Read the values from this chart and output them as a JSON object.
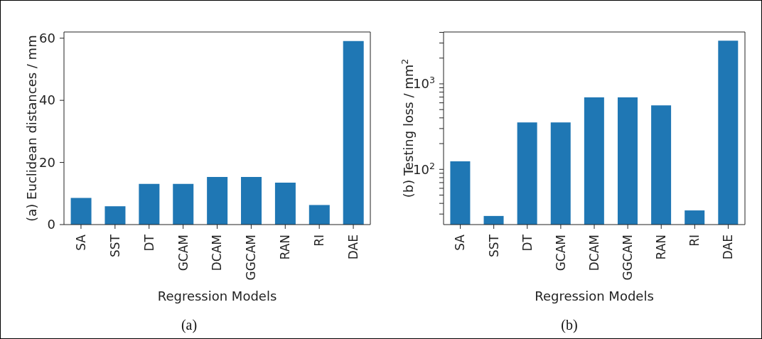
{
  "chart_data": [
    {
      "type": "bar",
      "categories": [
        "SA",
        "SST",
        "DT",
        "GCAM",
        "DCAM",
        "GGCAM",
        "RAN",
        "RI",
        "DAE"
      ],
      "values": [
        8.6,
        5.9,
        13.1,
        13.1,
        15.3,
        15.3,
        13.5,
        6.3,
        59.1
      ],
      "color": "#1f77b4",
      "ylim": [
        0,
        62
      ],
      "yticks": [
        0,
        20,
        40,
        60
      ],
      "xlabel": "Regression Models",
      "ylabel": "(a) Euclidean distances / mm",
      "annotations": [
        "(a)"
      ]
    },
    {
      "type": "bar",
      "categories": [
        "SA",
        "SST",
        "DT",
        "GCAM",
        "DCAM",
        "GGCAM",
        "RAN",
        "RI",
        "DAE"
      ],
      "values": [
        124,
        28.5,
        354,
        354,
        696,
        696,
        561,
        33.1,
        3190
      ],
      "color": "#1f77b4",
      "log": true,
      "ylim": [
        22.6,
        4040
      ],
      "yticks": [
        {
          "value": 30,
          "label": null
        },
        {
          "value": 40,
          "label": null
        },
        {
          "value": 50,
          "label": null
        },
        {
          "value": 60,
          "label": null
        },
        {
          "value": 70,
          "label": null
        },
        {
          "value": 80,
          "label": null
        },
        {
          "value": 90,
          "label": null
        },
        {
          "value": 100,
          "label": "10$^{2}$"
        },
        {
          "value": 200,
          "label": null
        },
        {
          "value": 300,
          "label": null
        },
        {
          "value": 400,
          "label": null
        },
        {
          "value": 500,
          "label": null
        },
        {
          "value": 600,
          "label": null
        },
        {
          "value": 700,
          "label": null
        },
        {
          "value": 800,
          "label": null
        },
        {
          "value": 900,
          "label": null
        },
        {
          "value": 1000,
          "label": "10$^{3}$"
        },
        {
          "value": 2000,
          "label": null
        },
        {
          "value": 3000,
          "label": null
        },
        {
          "value": 4000,
          "label": null
        }
      ],
      "xlabel": "Regression Models",
      "ylabel": "(b) Testing loss / mm$^{2}$",
      "annotations": [
        "(b)"
      ]
    }
  ]
}
